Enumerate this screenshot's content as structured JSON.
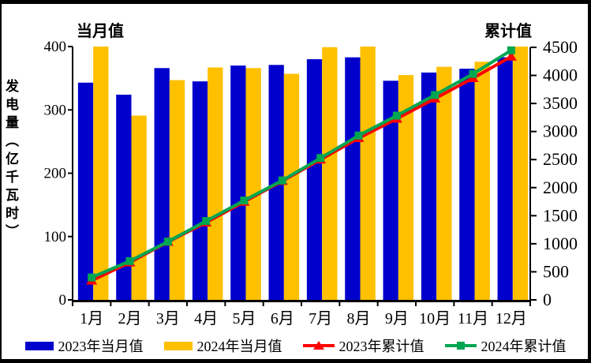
{
  "colors": {
    "bar_2023": "#0000CD",
    "bar_2024": "#FFC000",
    "line_2023": "#FF0000",
    "line_2024": "#00A651",
    "axis": "#000000",
    "frame_border": "#000000",
    "background": "#FFFFFF",
    "text": "#000000"
  },
  "chart_data": {
    "type": "combo",
    "title_left": "当月值",
    "title_right": "累计值",
    "ylabel": "发电量（亿千瓦时）",
    "grid": false,
    "legend_position": "bottom",
    "categories": [
      "1月",
      "2月",
      "3月",
      "4月",
      "5月",
      "6月",
      "7月",
      "8月",
      "9月",
      "10月",
      "11月",
      "12月"
    ],
    "left_axis": {
      "title": "当月值",
      "min": 0,
      "max": 400,
      "step": 100,
      "ticks": [
        0,
        100,
        200,
        300,
        400
      ]
    },
    "right_axis": {
      "title": "累计值",
      "min": 0,
      "max": 4500,
      "step": 500,
      "ticks": [
        0,
        500,
        1000,
        1500,
        2000,
        2500,
        3000,
        3500,
        4000,
        4500
      ]
    },
    "series": [
      {
        "name": "2023年当月值",
        "type": "bar",
        "axis": "left",
        "color": "#0000CD",
        "values": [
          343,
          324,
          366,
          345,
          370,
          371,
          380,
          383,
          346,
          359,
          365,
          383
        ]
      },
      {
        "name": "2024年当月值",
        "type": "bar",
        "axis": "left",
        "color": "#FFC000",
        "values": [
          400,
          291,
          347,
          367,
          366,
          357,
          399,
          401,
          355,
          368,
          376,
          420
        ]
      },
      {
        "name": "2023年累计值",
        "type": "line",
        "marker": "triangle",
        "axis": "right",
        "color": "#FF0000",
        "values": [
          343,
          667,
          1033,
          1378,
          1748,
          2119,
          2499,
          2882,
          3228,
          3587,
          3952,
          4335
        ]
      },
      {
        "name": "2024年累计值",
        "type": "line",
        "marker": "square",
        "axis": "right",
        "color": "#00A651",
        "values": [
          400,
          691,
          1038,
          1405,
          1771,
          2128,
          2527,
          2928,
          3283,
          3651,
          4027,
          4447
        ]
      }
    ]
  }
}
